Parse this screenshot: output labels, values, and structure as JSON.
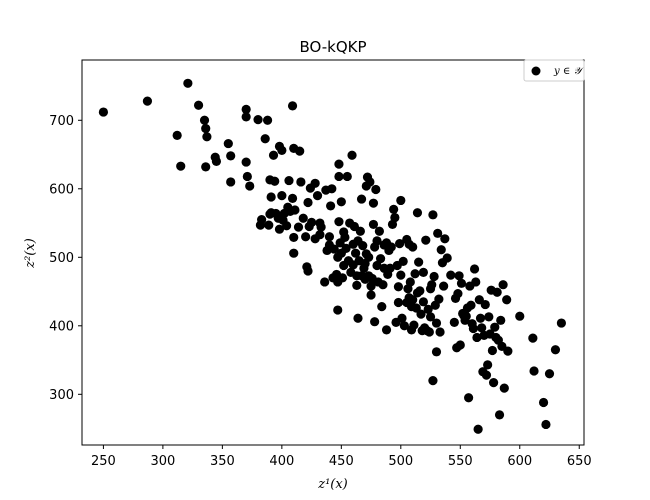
{
  "chart_data": {
    "type": "scatter",
    "title": "BO-kQKP",
    "xlabel": "z¹(x)",
    "ylabel": "z²(x)",
    "xlim": [
      232,
      654
    ],
    "ylim": [
      226,
      788
    ],
    "xticks": [
      250,
      300,
      350,
      400,
      450,
      500,
      550,
      600,
      650
    ],
    "yticks": [
      300,
      400,
      500,
      600,
      700
    ],
    "grid": false,
    "legend_position": "top-right",
    "series": [
      {
        "name": "y ∈ 𝒴",
        "color": "#000000",
        "points": [
          [
            250,
            712
          ],
          [
            287,
            728
          ],
          [
            312,
            678
          ],
          [
            315,
            633
          ],
          [
            321,
            754
          ],
          [
            330,
            722
          ],
          [
            335,
            700
          ],
          [
            336,
            688
          ],
          [
            337,
            676
          ],
          [
            336,
            632
          ],
          [
            344,
            646
          ],
          [
            345,
            640
          ],
          [
            355,
            666
          ],
          [
            357,
            648
          ],
          [
            357,
            610
          ],
          [
            370,
            716
          ],
          [
            370,
            705
          ],
          [
            370,
            639
          ],
          [
            371,
            618
          ],
          [
            373,
            604
          ],
          [
            380,
            701
          ],
          [
            382,
            547
          ],
          [
            383,
            555
          ],
          [
            386,
            673
          ],
          [
            388,
            700
          ],
          [
            390,
            613
          ],
          [
            389,
            547
          ],
          [
            390,
            563
          ],
          [
            391,
            588
          ],
          [
            391,
            565
          ],
          [
            393,
            649
          ],
          [
            394,
            611
          ],
          [
            395,
            564
          ],
          [
            397,
            557
          ],
          [
            398,
            662
          ],
          [
            398,
            541
          ],
          [
            400,
            656
          ],
          [
            400,
            590
          ],
          [
            401,
            554
          ],
          [
            402,
            564
          ],
          [
            404,
            546
          ],
          [
            405,
            573
          ],
          [
            406,
            612
          ],
          [
            407,
            567
          ],
          [
            409,
            721
          ],
          [
            410,
            659
          ],
          [
            409,
            586
          ],
          [
            410,
            529
          ],
          [
            410,
            506
          ],
          [
            411,
            569
          ],
          [
            414,
            544
          ],
          [
            415,
            655
          ],
          [
            416,
            610
          ],
          [
            418,
            557
          ],
          [
            420,
            530
          ],
          [
            421,
            486
          ],
          [
            422,
            580
          ],
          [
            422,
            480
          ],
          [
            423,
            545
          ],
          [
            424,
            601
          ],
          [
            425,
            551
          ],
          [
            428,
            608
          ],
          [
            428,
            527
          ],
          [
            430,
            590
          ],
          [
            432,
            550
          ],
          [
            432,
            533
          ],
          [
            433,
            544
          ],
          [
            436,
            464
          ],
          [
            437,
            598
          ],
          [
            438,
            510
          ],
          [
            440,
            518
          ],
          [
            440,
            530
          ],
          [
            441,
            575
          ],
          [
            442,
            600
          ],
          [
            443,
            470
          ],
          [
            444,
            512
          ],
          [
            446,
            475
          ],
          [
            447,
            464
          ],
          [
            447,
            500
          ],
          [
            447,
            423
          ],
          [
            448,
            552
          ],
          [
            448,
            618
          ],
          [
            448,
            636
          ],
          [
            449,
            521
          ],
          [
            450,
            581
          ],
          [
            450,
            506
          ],
          [
            451,
            470
          ],
          [
            452,
            488
          ],
          [
            452,
            537
          ],
          [
            453,
            529
          ],
          [
            454,
            513
          ],
          [
            455,
            618
          ],
          [
            456,
            495
          ],
          [
            457,
            550
          ],
          [
            458,
            478
          ],
          [
            459,
            649
          ],
          [
            460,
            489
          ],
          [
            460,
            519
          ],
          [
            461,
            545
          ],
          [
            462,
            506
          ],
          [
            463,
            473
          ],
          [
            463,
            459
          ],
          [
            464,
            411
          ],
          [
            464,
            524
          ],
          [
            465,
            495
          ],
          [
            466,
            538
          ],
          [
            467,
            473
          ],
          [
            467,
            585
          ],
          [
            468,
            517
          ],
          [
            469,
            484
          ],
          [
            470,
            468
          ],
          [
            470,
            491
          ],
          [
            471,
            505
          ],
          [
            471,
            604
          ],
          [
            472,
            617
          ],
          [
            473,
            500
          ],
          [
            473,
            473
          ],
          [
            474,
            610
          ],
          [
            475,
            458
          ],
          [
            475,
            445
          ],
          [
            476,
            469
          ],
          [
            477,
            579
          ],
          [
            477,
            548
          ],
          [
            478,
            406
          ],
          [
            478,
            515
          ],
          [
            479,
            599
          ],
          [
            480,
            524
          ],
          [
            480,
            488
          ],
          [
            481,
            464
          ],
          [
            482,
            538
          ],
          [
            483,
            498
          ],
          [
            484,
            428
          ],
          [
            485,
            460
          ],
          [
            486,
            484
          ],
          [
            486,
            518
          ],
          [
            488,
            394
          ],
          [
            488,
            521
          ],
          [
            489,
            475
          ],
          [
            490,
            510
          ],
          [
            491,
            484
          ],
          [
            492,
            515
          ],
          [
            493,
            548
          ],
          [
            494,
            570
          ],
          [
            495,
            558
          ],
          [
            496,
            405
          ],
          [
            497,
            488
          ],
          [
            498,
            434
          ],
          [
            498,
            457
          ],
          [
            499,
            520
          ],
          [
            500,
            583
          ],
          [
            500,
            474
          ],
          [
            501,
            411
          ],
          [
            502,
            494
          ],
          [
            503,
            400
          ],
          [
            505,
            434
          ],
          [
            505,
            526
          ],
          [
            506,
            454
          ],
          [
            507,
            441
          ],
          [
            507,
            519
          ],
          [
            508,
            464
          ],
          [
            509,
            394
          ],
          [
            509,
            428
          ],
          [
            510,
            515
          ],
          [
            510,
            438
          ],
          [
            511,
            401
          ],
          [
            512,
            476
          ],
          [
            513,
            426
          ],
          [
            514,
            565
          ],
          [
            514,
            448
          ],
          [
            515,
            493
          ],
          [
            516,
            451
          ],
          [
            517,
            417
          ],
          [
            518,
            393
          ],
          [
            519,
            435
          ],
          [
            519,
            478
          ],
          [
            520,
            397
          ],
          [
            521,
            525
          ],
          [
            522,
            393
          ],
          [
            523,
            424
          ],
          [
            524,
            391
          ],
          [
            525,
            413
          ],
          [
            525,
            454
          ],
          [
            526,
            460
          ],
          [
            527,
            562
          ],
          [
            527,
            320
          ],
          [
            528,
            472
          ],
          [
            529,
            430
          ],
          [
            530,
            362
          ],
          [
            530,
            404
          ],
          [
            531,
            535
          ],
          [
            532,
            439
          ],
          [
            533,
            391
          ],
          [
            534,
            511
          ],
          [
            535,
            492
          ],
          [
            536,
            458
          ],
          [
            537,
            527
          ],
          [
            539,
            499
          ],
          [
            542,
            474
          ],
          [
            545,
            405
          ],
          [
            546,
            440
          ],
          [
            547,
            368
          ],
          [
            548,
            447
          ],
          [
            549,
            473
          ],
          [
            550,
            372
          ],
          [
            551,
            462
          ],
          [
            552,
            418
          ],
          [
            553,
            415
          ],
          [
            554,
            408
          ],
          [
            555,
            414
          ],
          [
            556,
            426
          ],
          [
            557,
            295
          ],
          [
            558,
            458
          ],
          [
            559,
            430
          ],
          [
            560,
            403
          ],
          [
            561,
            396
          ],
          [
            562,
            483
          ],
          [
            563,
            464
          ],
          [
            564,
            383
          ],
          [
            565,
            249
          ],
          [
            566,
            438
          ],
          [
            567,
            411
          ],
          [
            568,
            397
          ],
          [
            569,
            333
          ],
          [
            570,
            386
          ],
          [
            571,
            431
          ],
          [
            572,
            328
          ],
          [
            573,
            343
          ],
          [
            574,
            413
          ],
          [
            575,
            388
          ],
          [
            576,
            452
          ],
          [
            577,
            364
          ],
          [
            578,
            317
          ],
          [
            579,
            398
          ],
          [
            580,
            383
          ],
          [
            581,
            449
          ],
          [
            582,
            379
          ],
          [
            583,
            270
          ],
          [
            584,
            408
          ],
          [
            585,
            370
          ],
          [
            586,
            460
          ],
          [
            587,
            309
          ],
          [
            589,
            438
          ],
          [
            590,
            363
          ],
          [
            600,
            414
          ],
          [
            611,
            382
          ],
          [
            612,
            334
          ],
          [
            620,
            288
          ],
          [
            622,
            256
          ],
          [
            625,
            330
          ],
          [
            630,
            365
          ],
          [
            635,
            404
          ]
        ]
      }
    ]
  }
}
